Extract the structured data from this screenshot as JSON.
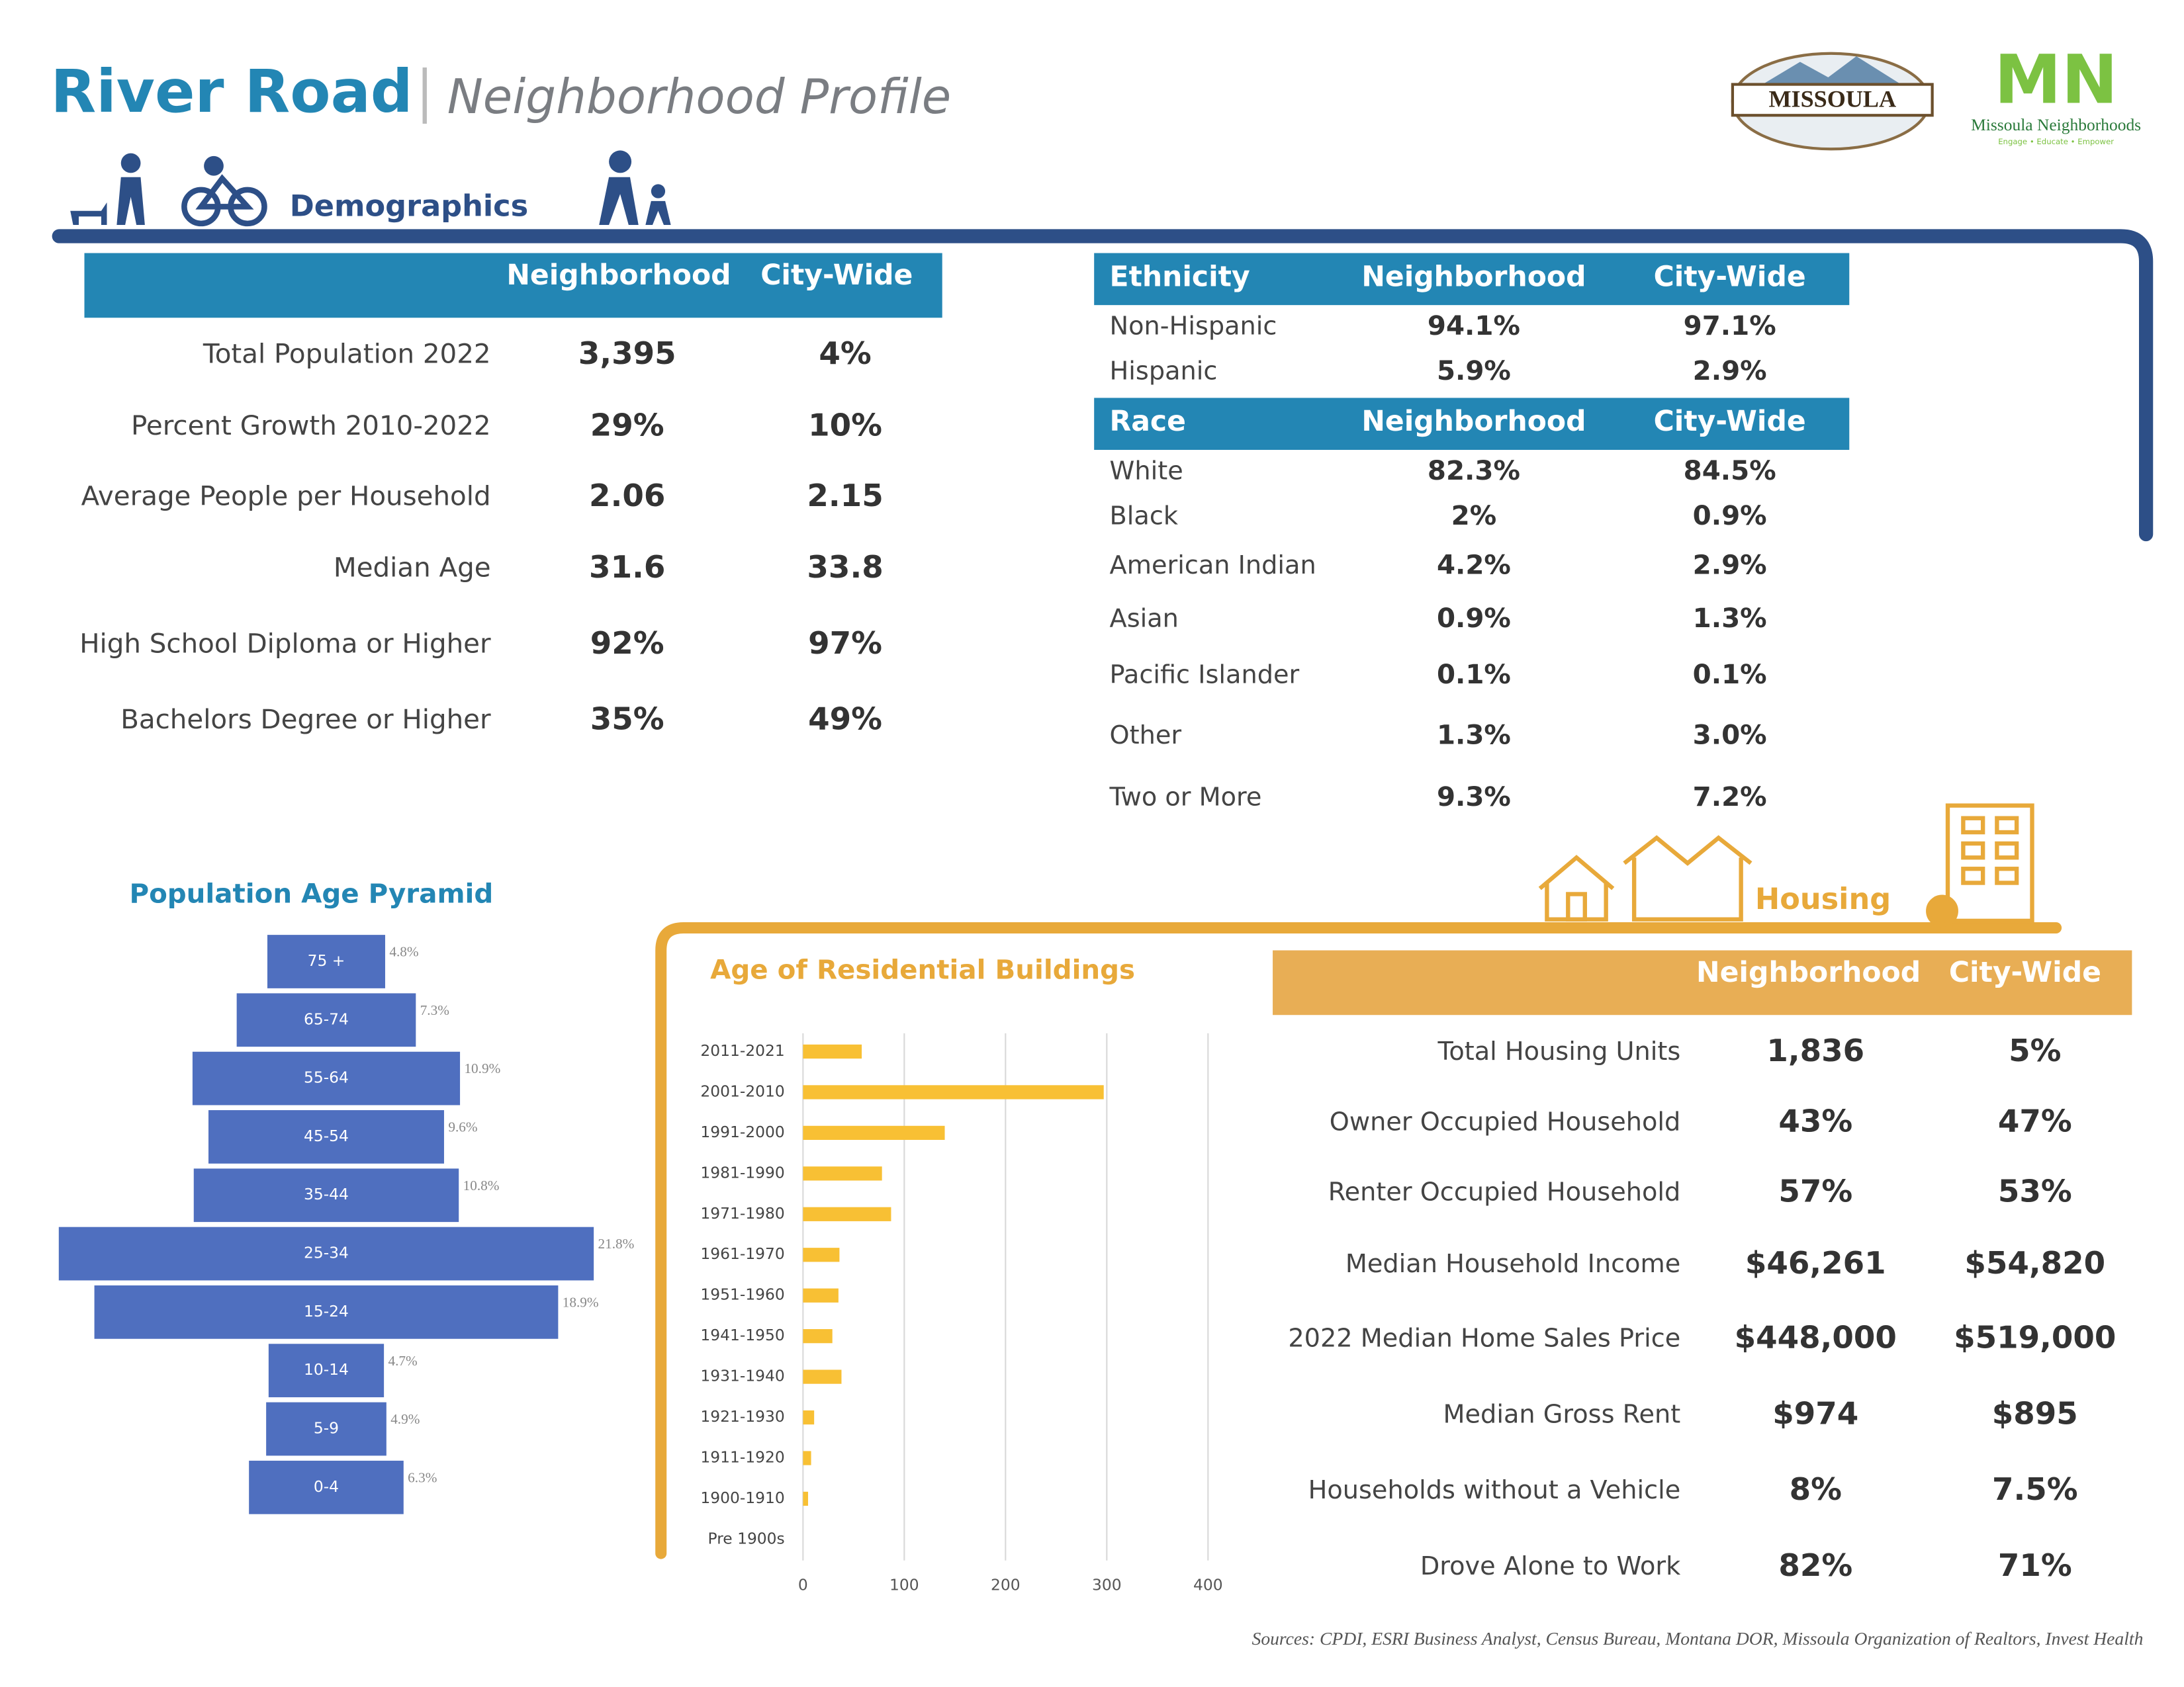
{
  "header": {
    "title": "River Road",
    "subtitle": "Neighborhood Profile",
    "logo_city": "MISSOULA",
    "logo_org": "Missoula Neighborhoods",
    "logo_tagline": "Engage • Educate • Empower"
  },
  "demographics": {
    "section": "Demographics",
    "columns": [
      "Neighborhood",
      "City-Wide"
    ],
    "rows": [
      [
        "Total Population 2022",
        "3,395",
        "4%"
      ],
      [
        "Percent Growth 2010-2022",
        "29%",
        "10%"
      ],
      [
        "Average People per Household",
        "2.06",
        "2.15"
      ],
      [
        "Median Age",
        "31.6",
        "33.8"
      ],
      [
        "High School Diploma or Higher",
        "92%",
        "97%"
      ],
      [
        "Bachelors Degree or Higher",
        "35%",
        "49%"
      ]
    ]
  },
  "ethnicity": {
    "columns": [
      "Ethnicity",
      "Neighborhood",
      "City-Wide"
    ],
    "rows": [
      [
        "Non-Hispanic",
        "94.1%",
        "97.1%"
      ],
      [
        "Hispanic",
        "5.9%",
        "2.9%"
      ]
    ]
  },
  "race": {
    "columns": [
      "Race",
      "Neighborhood",
      "City-Wide"
    ],
    "rows": [
      [
        "White",
        "82.3%",
        "84.5%"
      ],
      [
        "Black",
        "2%",
        "0.9%"
      ],
      [
        "American Indian",
        "4.2%",
        "2.9%"
      ],
      [
        "Asian",
        "0.9%",
        "1.3%"
      ],
      [
        "Pacific Islander",
        "0.1%",
        "0.1%"
      ],
      [
        "Other",
        "1.3%",
        "3.0%"
      ],
      [
        "Two or More",
        "9.3%",
        "7.2%"
      ]
    ]
  },
  "housing": {
    "section": "Housing",
    "columns": [
      "Neighborhood",
      "City-Wide"
    ],
    "rows": [
      [
        "Total Housing Units",
        "1,836",
        "5%"
      ],
      [
        "Owner Occupied Household",
        "43%",
        "47%"
      ],
      [
        "Renter Occupied Household",
        "57%",
        "53%"
      ],
      [
        "Median Household Income",
        "$46,261",
        "$54,820"
      ],
      [
        "2022 Median Home Sales Price",
        "$448,000",
        "$519,000"
      ],
      [
        "Median Gross Rent",
        "$974",
        "$895"
      ],
      [
        "Households without a Vehicle",
        "8%",
        "7.5%"
      ],
      [
        "Drove Alone to Work",
        "82%",
        "71%"
      ]
    ]
  },
  "chart_data": [
    {
      "type": "pyramid",
      "title": "Population Age Pyramid",
      "color": "#4f6fbf",
      "categories": [
        "75 +",
        "65-74",
        "55-64",
        "45-54",
        "35-44",
        "25-34",
        "15-24",
        "10-14",
        "5-9",
        "0-4"
      ],
      "values": [
        4.8,
        7.3,
        10.9,
        9.6,
        10.8,
        21.8,
        18.9,
        4.7,
        4.9,
        6.3
      ],
      "value_labels": [
        "4.8%",
        "7.3%",
        "10.9%",
        "9.6%",
        "10.8%",
        "21.8%",
        "18.9%",
        "4.7%",
        "4.9%",
        "6.3%"
      ]
    },
    {
      "type": "hbar",
      "title": "Age of Residential Buildings",
      "color": "#f8c034",
      "categories": [
        "2011-2021",
        "2001-2010",
        "1991-2000",
        "1981-1990",
        "1971-1980",
        "1961-1970",
        "1951-1960",
        "1941-1950",
        "1931-1940",
        "1921-1930",
        "1911-1920",
        "1900-1910",
        "Pre 1900s"
      ],
      "values": [
        58,
        297,
        140,
        78,
        87,
        36,
        35,
        29,
        38,
        11,
        8,
        5,
        0
      ],
      "xlim": [
        0,
        400
      ],
      "xticks": [
        0,
        100,
        200,
        300,
        400
      ],
      "grid": true
    }
  ],
  "sources": "Sources: CPDI, ESRI Business Analyst, Census Bureau, Montana DOR, Missoula Organization of Realtors, Invest Health"
}
